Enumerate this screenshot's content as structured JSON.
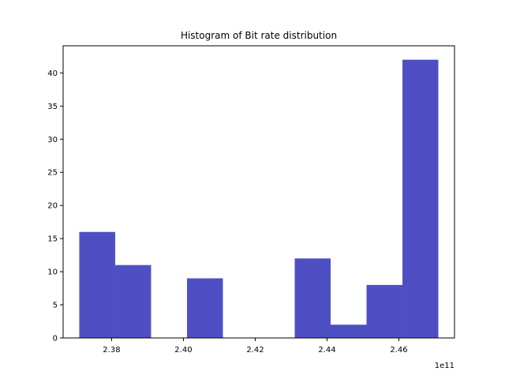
{
  "chart_data": {
    "type": "bar",
    "title": "Histogram of Bit rate distribution",
    "xlabel": "",
    "ylabel": "",
    "x_offset_label": "1e11",
    "x_scale_multiplier": 100000000000,
    "bins": [
      {
        "start": 2.371,
        "end": 2.381,
        "count": 16
      },
      {
        "start": 2.381,
        "end": 2.391,
        "count": 11
      },
      {
        "start": 2.391,
        "end": 2.401,
        "count": 0
      },
      {
        "start": 2.401,
        "end": 2.411,
        "count": 9
      },
      {
        "start": 2.411,
        "end": 2.421,
        "count": 0
      },
      {
        "start": 2.421,
        "end": 2.431,
        "count": 0
      },
      {
        "start": 2.431,
        "end": 2.441,
        "count": 12
      },
      {
        "start": 2.441,
        "end": 2.451,
        "count": 2
      },
      {
        "start": 2.451,
        "end": 2.461,
        "count": 8
      },
      {
        "start": 2.461,
        "end": 2.471,
        "count": 42
      }
    ],
    "xlim": [
      2.3665,
      2.4755
    ],
    "ylim": [
      0,
      44.1
    ],
    "xticks": [
      2.38,
      2.4,
      2.42,
      2.44,
      2.46
    ],
    "xtick_labels": [
      "2.38",
      "2.40",
      "2.42",
      "2.44",
      "2.46"
    ],
    "yticks": [
      0,
      5,
      10,
      15,
      20,
      25,
      30,
      35,
      40
    ],
    "ytick_labels": [
      "0",
      "5",
      "10",
      "15",
      "20",
      "25",
      "30",
      "35",
      "40"
    ],
    "bar_color": "#4f4fc4",
    "grid": false,
    "legend": "none"
  }
}
